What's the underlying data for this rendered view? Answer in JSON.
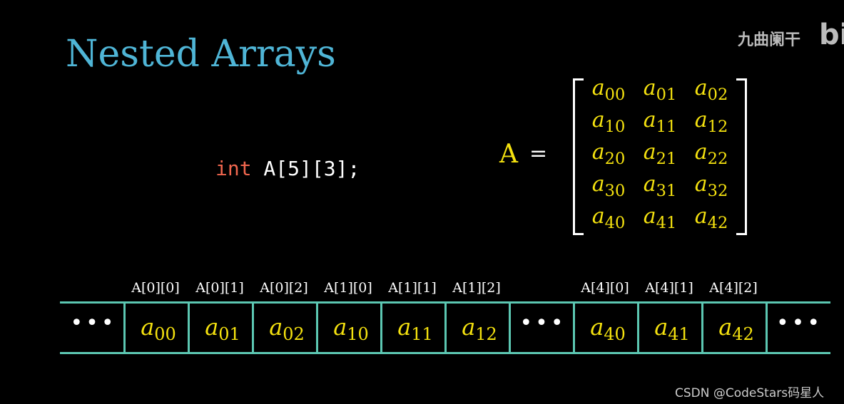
{
  "title": "Nested Arrays",
  "watermark": {
    "text": "九曲阑干",
    "logo": "bili"
  },
  "code": {
    "keyword": "int",
    "rest": " A[5][3];"
  },
  "equation": {
    "lhs": "A",
    "eq": "="
  },
  "matrix": [
    [
      "00",
      "01",
      "02"
    ],
    [
      "10",
      "11",
      "12"
    ],
    [
      "20",
      "21",
      "22"
    ],
    [
      "30",
      "31",
      "32"
    ],
    [
      "40",
      "41",
      "42"
    ]
  ],
  "memory": {
    "cells": [
      {
        "label": "",
        "sub": "",
        "dots": "•••"
      },
      {
        "label": "A[0][0]",
        "sub": "00"
      },
      {
        "label": "A[0][1]",
        "sub": "01"
      },
      {
        "label": "A[0][2]",
        "sub": "02"
      },
      {
        "label": "A[1][0]",
        "sub": "10"
      },
      {
        "label": "A[1][1]",
        "sub": "11"
      },
      {
        "label": "A[1][2]",
        "sub": "12"
      },
      {
        "label": "",
        "sub": "",
        "dots": "•••"
      },
      {
        "label": "A[4][0]",
        "sub": "40"
      },
      {
        "label": "A[4][1]",
        "sub": "41"
      },
      {
        "label": "A[4][2]",
        "sub": "42"
      },
      {
        "label": "",
        "sub": "",
        "dots": "•••"
      }
    ]
  },
  "credit": "CSDN @CodeStars码星人",
  "colors": {
    "title": "#4fb5d6",
    "element": "#f5e20f",
    "grid": "#5cc7b2",
    "keyword": "#f0664e"
  }
}
